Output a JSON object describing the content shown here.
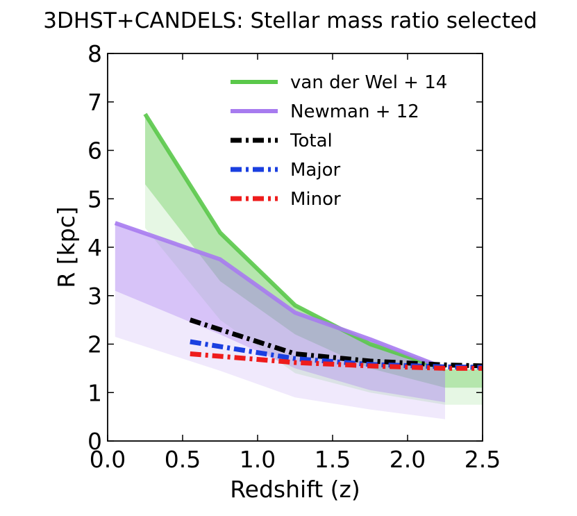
{
  "chart_data": {
    "type": "line",
    "title": "3DHST+CANDELS: Stellar mass ratio selected",
    "xlabel": "Redshift (z)",
    "ylabel": "R [kpc]",
    "xlim": [
      0.0,
      2.5
    ],
    "ylim": [
      0,
      8
    ],
    "xticks": [
      "0.0",
      "0.5",
      "1.0",
      "1.5",
      "2.0",
      "2.5"
    ],
    "yticks": [
      "0",
      "1",
      "2",
      "3",
      "4",
      "5",
      "6",
      "7",
      "8"
    ],
    "legend_position": "top-right",
    "bands": [
      {
        "name": "van der Wel + 14 band",
        "color": "#5ac84a",
        "opacity": 0.45,
        "x": [
          0.25,
          0.75,
          1.25,
          1.75,
          2.25,
          2.5
        ],
        "upper": [
          6.75,
          4.3,
          2.8,
          2.0,
          1.48,
          1.48
        ],
        "lower": [
          5.3,
          3.3,
          2.2,
          1.5,
          1.1,
          1.1
        ]
      },
      {
        "name": "van der Wel + 14 lower band",
        "color": "#5ac84a",
        "opacity": 0.15,
        "x": [
          0.25,
          0.75,
          1.25,
          1.75,
          2.25,
          2.5
        ],
        "upper": [
          5.3,
          3.3,
          2.2,
          1.5,
          1.1,
          1.1
        ],
        "lower": [
          4.4,
          2.5,
          1.4,
          1.0,
          0.75,
          0.75
        ]
      },
      {
        "name": "Newman + 12 band",
        "color": "#a77bef",
        "opacity": 0.45,
        "x": [
          0.05,
          0.75,
          1.25,
          1.75,
          2.25
        ],
        "upper": [
          4.5,
          3.75,
          2.65,
          2.1,
          1.5
        ],
        "lower": [
          3.1,
          2.2,
          1.5,
          1.05,
          0.8
        ]
      },
      {
        "name": "Newman + 12 lower band",
        "color": "#a77bef",
        "opacity": 0.17,
        "x": [
          0.05,
          0.75,
          1.25,
          1.75,
          2.25
        ],
        "upper": [
          3.1,
          2.2,
          1.5,
          1.05,
          0.8
        ],
        "lower": [
          2.15,
          1.45,
          0.9,
          0.65,
          0.45
        ]
      }
    ],
    "series": [
      {
        "name": "van der Wel + 14",
        "color": "#5ac84a",
        "style": "solid",
        "x": [
          0.25,
          0.75,
          1.25,
          1.75,
          2.25
        ],
        "y": [
          6.75,
          4.3,
          2.8,
          2.0,
          1.48
        ]
      },
      {
        "name": "Newman + 12",
        "color": "#a77bef",
        "style": "solid",
        "x": [
          0.05,
          0.75,
          1.25,
          1.75,
          2.25
        ],
        "y": [
          4.5,
          3.75,
          2.65,
          2.1,
          1.5
        ]
      },
      {
        "name": "Total",
        "color": "#000000",
        "style": "dashdot",
        "x": [
          0.55,
          1.25,
          1.75,
          2.25,
          2.5
        ],
        "y": [
          2.5,
          1.8,
          1.65,
          1.57,
          1.55
        ]
      },
      {
        "name": "Major",
        "color": "#1a3fe0",
        "style": "dashdot",
        "x": [
          0.55,
          1.25,
          1.75,
          2.25,
          2.5
        ],
        "y": [
          2.05,
          1.7,
          1.58,
          1.53,
          1.52
        ]
      },
      {
        "name": "Minor",
        "color": "#ee1c1c",
        "style": "dashdot",
        "x": [
          0.55,
          1.25,
          1.75,
          2.25,
          2.5
        ],
        "y": [
          1.8,
          1.62,
          1.55,
          1.5,
          1.5
        ]
      }
    ],
    "legend": [
      {
        "label": "van der Wel + 14",
        "color": "#5ac84a",
        "style": "solid"
      },
      {
        "label": "Newman + 12",
        "color": "#a77bef",
        "style": "solid"
      },
      {
        "label": "Total",
        "color": "#000000",
        "style": "dashdot"
      },
      {
        "label": "Major",
        "color": "#1a3fe0",
        "style": "dashdot"
      },
      {
        "label": "Minor",
        "color": "#ee1c1c",
        "style": "dashdot"
      }
    ]
  }
}
